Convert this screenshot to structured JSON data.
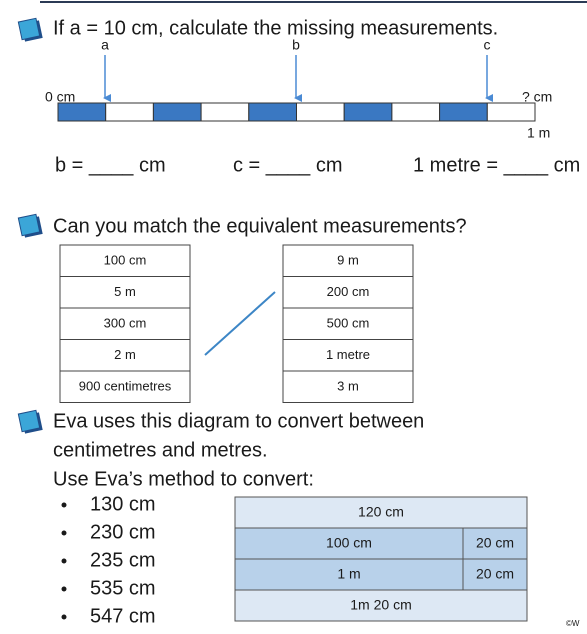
{
  "q1": {
    "text": "If a = 10 cm, calculate the missing measurements.",
    "labels": [
      "a",
      "b",
      "c"
    ],
    "start": "0 cm",
    "end": "? cm",
    "length": "1 m",
    "answers": [
      "b = ____ cm",
      "c = ____ cm",
      "1 metre = ____ cm"
    ]
  },
  "q2": {
    "text": "Can you match the equivalent measurements?",
    "left": [
      "100 cm",
      "5 m",
      "300 cm",
      "2 m",
      "900 centimetres"
    ],
    "right": [
      "9 m",
      "200 cm",
      "500 cm",
      "1 metre",
      "3 m"
    ]
  },
  "q3": {
    "lines": [
      "Eva uses this diagram to convert between",
      "centimetres and metres.",
      "Use Eva’s method to convert:"
    ],
    "bullets": [
      "130 cm",
      "230 cm",
      "235 cm",
      "535 cm",
      "547 cm"
    ],
    "diagram": {
      "top": "120 cm",
      "row2": [
        "100 cm",
        "20 cm"
      ],
      "row3": [
        "1 m",
        "20 cm"
      ],
      "bottom": "1m 20 cm"
    }
  },
  "footer": "©W"
}
